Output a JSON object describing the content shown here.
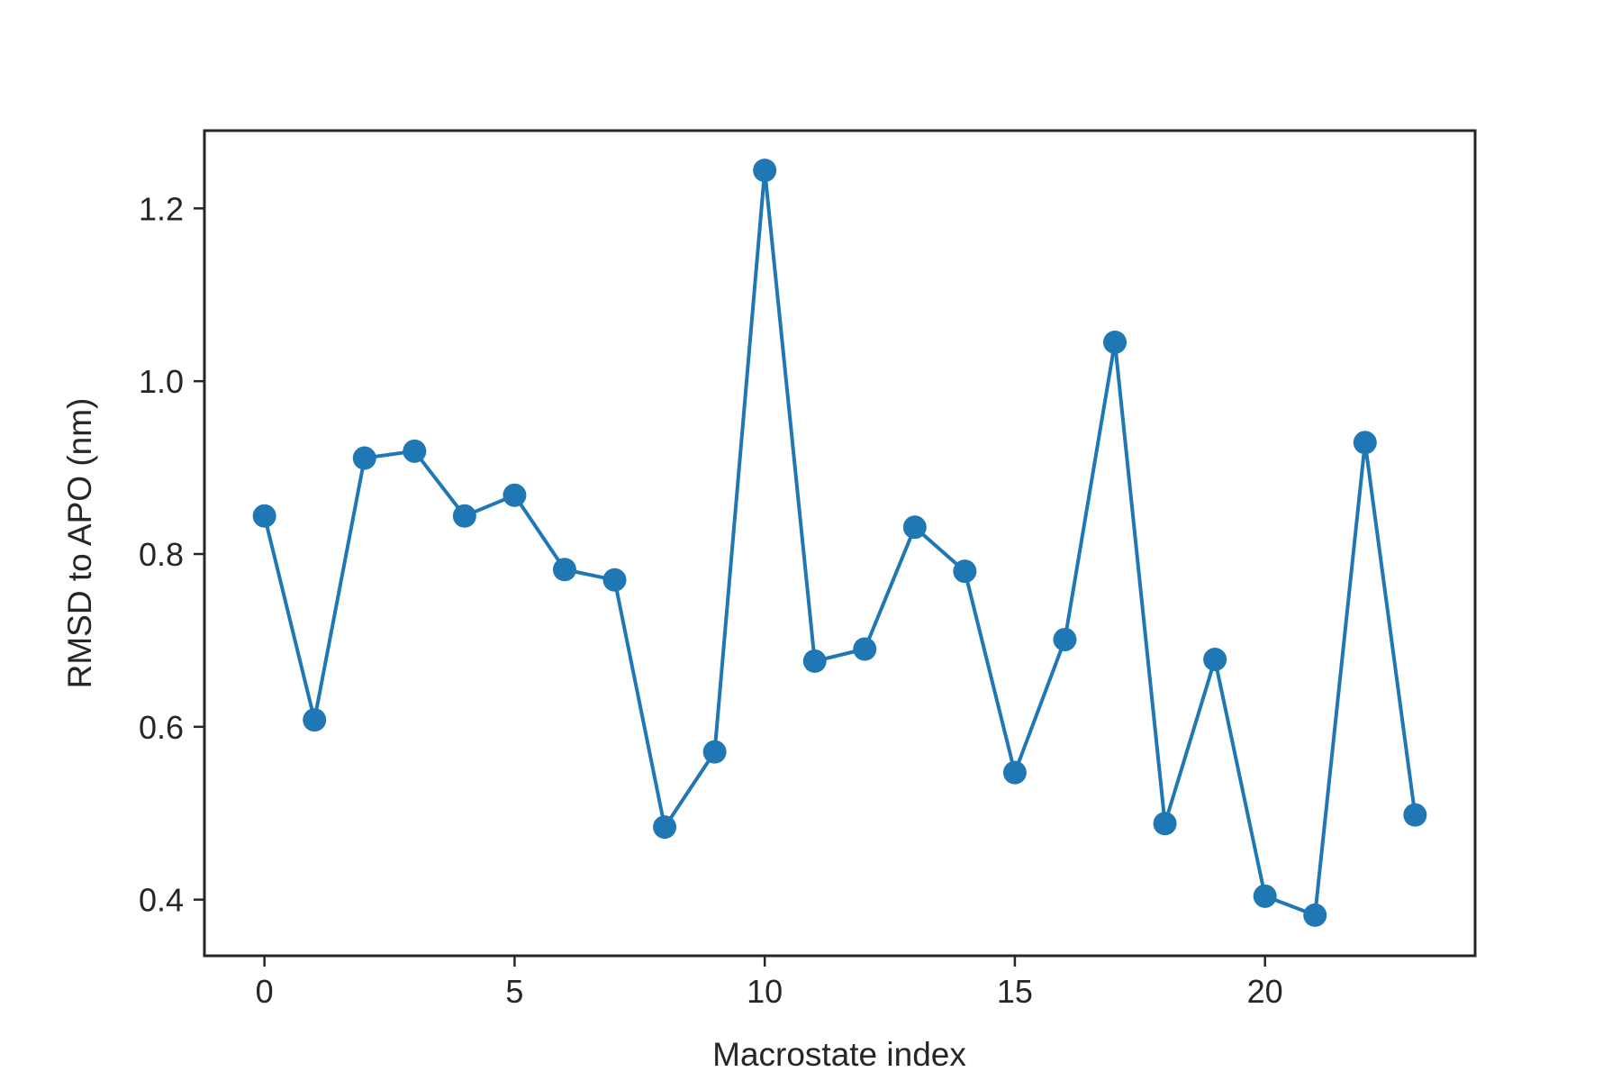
{
  "chart_data": {
    "type": "line",
    "title": "",
    "xlabel": "Macrostate index",
    "ylabel": "RMSD to APO (nm)",
    "xlim": [
      -1.2,
      24.2
    ],
    "ylim": [
      0.335,
      1.29
    ],
    "xticks": [
      0,
      5,
      10,
      15,
      20
    ],
    "xtick_labels": [
      "0",
      "5",
      "10",
      "15",
      "20"
    ],
    "yticks": [
      0.4,
      0.6,
      0.8,
      1.0,
      1.2
    ],
    "ytick_labels": [
      "0.4",
      "0.6",
      "0.8",
      "1.0",
      "1.2"
    ],
    "grid": false,
    "legend": "none",
    "series": [
      {
        "name": "RMSD",
        "color": "#1f77b4",
        "marker": "circle",
        "x": [
          0,
          1,
          2,
          3,
          4,
          5,
          6,
          7,
          8,
          9,
          10,
          11,
          12,
          13,
          14,
          15,
          16,
          17,
          18,
          19,
          20,
          21,
          22,
          23
        ],
        "values": [
          0.844,
          0.608,
          0.911,
          0.919,
          0.844,
          0.868,
          0.782,
          0.77,
          0.484,
          0.571,
          1.244,
          0.676,
          0.69,
          0.831,
          0.78,
          0.547,
          0.701,
          1.045,
          0.488,
          0.678,
          0.404,
          0.382,
          0.929,
          0.498
        ]
      }
    ]
  }
}
